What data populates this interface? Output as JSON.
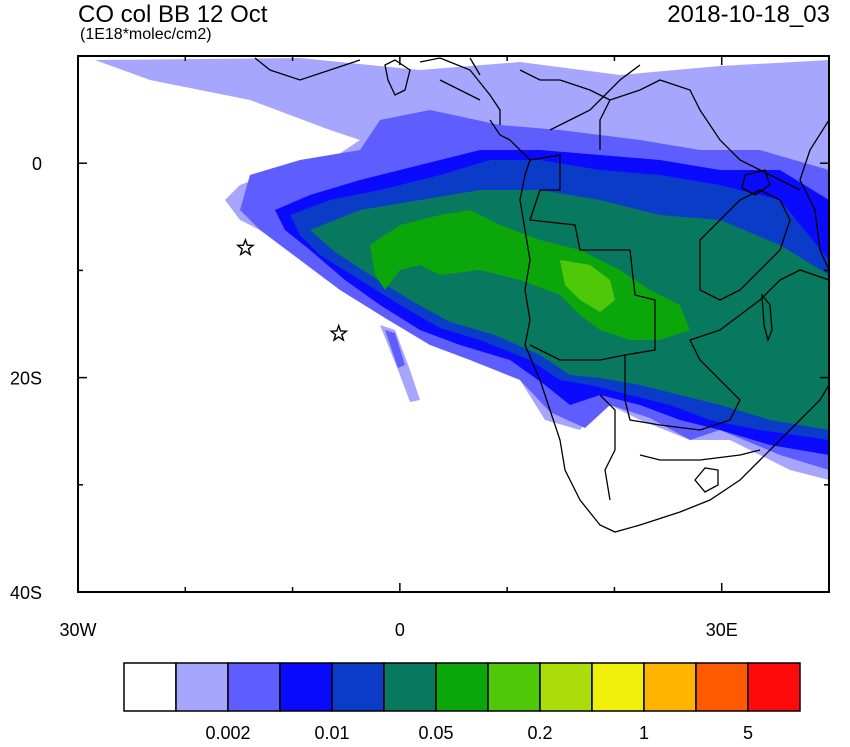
{
  "header": {
    "title": "CO col BB 12 Oct",
    "units": "(1E18*molec/cm2)",
    "timestamp": "2018-10-18_03"
  },
  "map": {
    "region": "Southern Africa and South Atlantic",
    "lon_range": [
      -30,
      40
    ],
    "lat_range": [
      -40,
      10
    ],
    "x_ticks": [
      {
        "value": -30,
        "label": "30W"
      },
      {
        "value": 0,
        "label": "0"
      },
      {
        "value": 30,
        "label": "30E"
      }
    ],
    "y_ticks": [
      {
        "value": 0,
        "label": "0"
      },
      {
        "value": -20,
        "label": "20S"
      },
      {
        "value": -40,
        "label": "40S"
      }
    ],
    "markers": [
      {
        "name": "star",
        "lon": -14.4,
        "lat": -7.9
      },
      {
        "name": "star",
        "lon": -5.7,
        "lat": -15.9
      }
    ]
  },
  "colorbar": {
    "colors": [
      "#ffffff",
      "#a6a6ff",
      "#5e5eff",
      "#0a0aff",
      "#0a3cc8",
      "#08785f",
      "#0aa60a",
      "#50c80a",
      "#aadd0a",
      "#f0f00a",
      "#ffb400",
      "#ff5a00",
      "#ff0a0a"
    ],
    "labels": [
      {
        "text": "0.002",
        "index": 2
      },
      {
        "text": "0.01",
        "index": 4
      },
      {
        "text": "0.05",
        "index": 6
      },
      {
        "text": "0.2",
        "index": 8
      },
      {
        "text": "1",
        "index": 10
      },
      {
        "text": "5",
        "index": 12
      }
    ]
  }
}
